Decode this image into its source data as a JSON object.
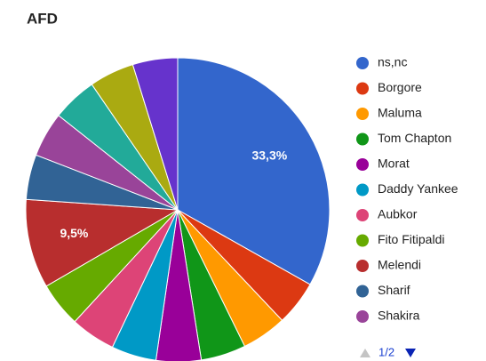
{
  "chart_data": {
    "type": "pie",
    "title": "AFD",
    "categories": [
      "ns,nc",
      "Borgore",
      "Maluma",
      "Tom Chapton",
      "Morat",
      "Daddy Yankee",
      "Aubkor",
      "Fito Fitipaldi",
      "Melendi",
      "Sharif",
      "Shakira",
      null,
      null,
      null
    ],
    "values": [
      33.3,
      4.8,
      4.8,
      4.8,
      4.8,
      4.8,
      4.8,
      4.8,
      9.5,
      4.8,
      4.8,
      4.8,
      4.8,
      4.8
    ],
    "value_labels": [
      "33,3%",
      null,
      null,
      null,
      null,
      null,
      null,
      null,
      "9,5%",
      null,
      null,
      null,
      null,
      null
    ],
    "colors": [
      "#3366cc",
      "#dc3912",
      "#ff9900",
      "#109618",
      "#990099",
      "#0099c6",
      "#dd4477",
      "#66aa00",
      "#b82e2e",
      "#316395",
      "#994499",
      "#22aa99",
      "#aaaa11",
      "#6633cc"
    ],
    "legend": "right",
    "pager": "1/2"
  }
}
